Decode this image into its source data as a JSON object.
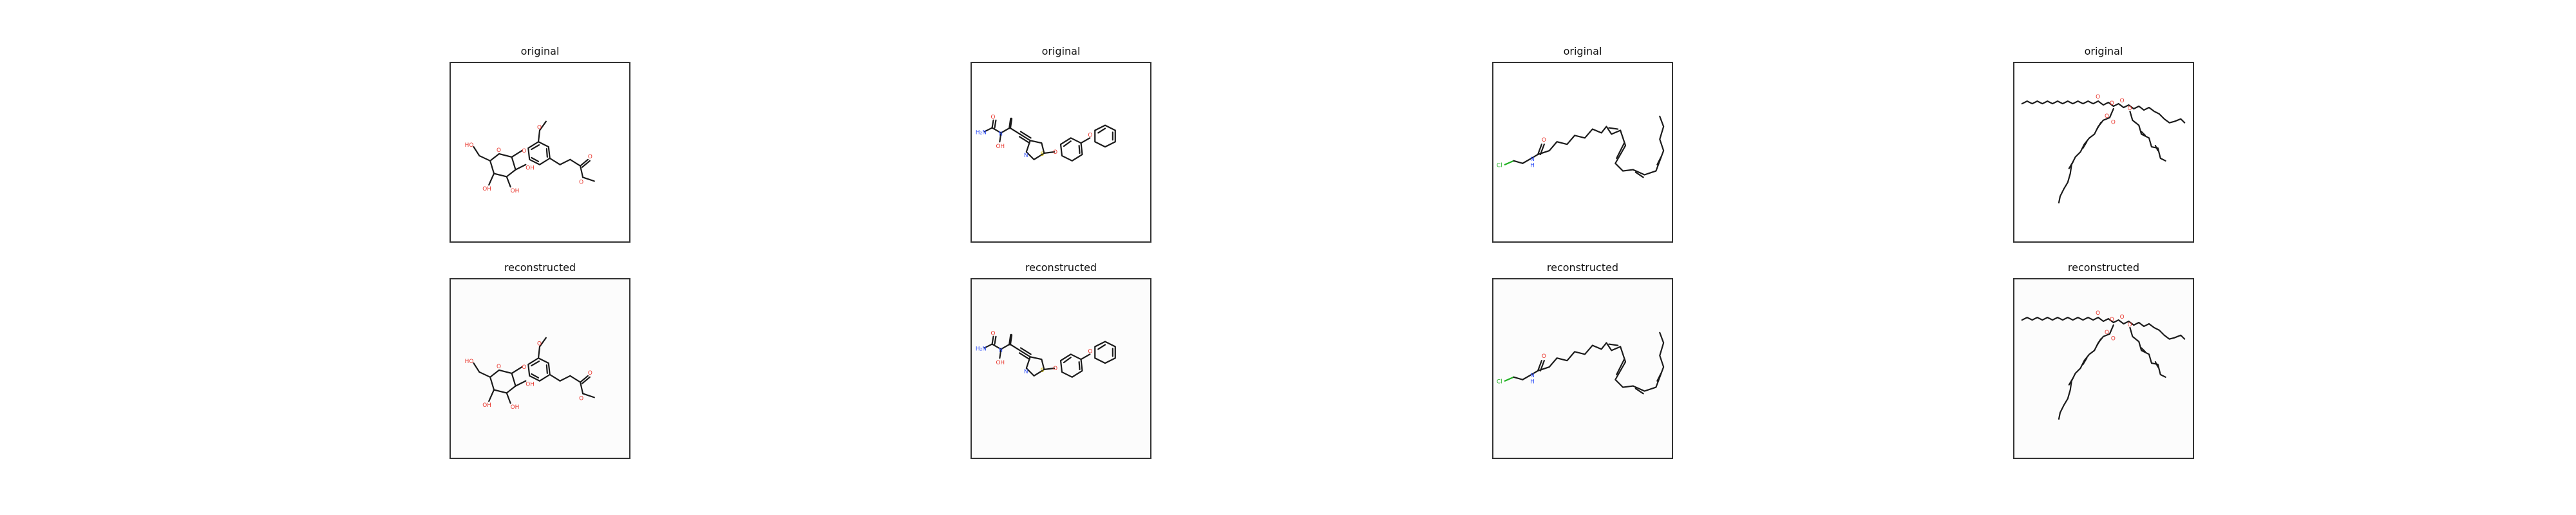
{
  "colors": {
    "background": "#ffffff",
    "panel_border": "#333333",
    "original_bg": "#ffffff",
    "reconstructed_bg": "#fcfcfc",
    "bond": "#1a1a1a",
    "oxygen": "#e8332a",
    "nitrogen": "#3050f8",
    "sulfur": "#c8b400",
    "chlorine": "#1fb020"
  },
  "rows": [
    {
      "title": "original"
    },
    {
      "title": "reconstructed"
    }
  ],
  "molecules": [
    {
      "atom_labels": [
        "HO",
        "O",
        "O",
        "O",
        "OH",
        "OH",
        "OH",
        "O",
        "O"
      ]
    },
    {
      "atom_labels": [
        "O",
        "N",
        "OH",
        "H₂N",
        "N",
        "S",
        "O",
        "O"
      ]
    },
    {
      "atom_labels": [
        "Cl",
        "N",
        "H",
        "O"
      ]
    },
    {
      "atom_labels": [
        "O",
        "O",
        "O",
        "O",
        "O",
        "O"
      ]
    }
  ]
}
